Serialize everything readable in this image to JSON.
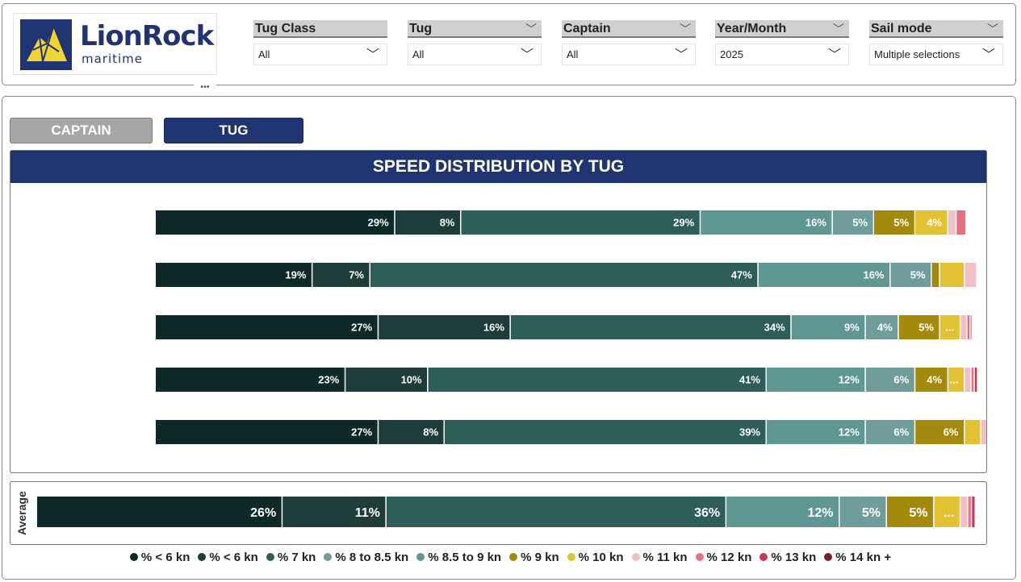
{
  "logo": {
    "name": "LionRock",
    "tagline": "maritime"
  },
  "filters": [
    {
      "label": "Tug Class",
      "value": "All",
      "header_chevron": false
    },
    {
      "label": "Tug",
      "value": "All",
      "header_chevron": true
    },
    {
      "label": "Captain",
      "value": "All",
      "header_chevron": true
    },
    {
      "label": "Year/Month",
      "value": "2025",
      "header_chevron": true
    },
    {
      "label": "Sail mode",
      "value": "Multiple selections",
      "header_chevron": true
    }
  ],
  "more_options": "•••",
  "buttons": {
    "captain": "CAPTAIN",
    "tug": "TUG"
  },
  "colors": {
    "brand": "#1f3470",
    "button_inactive": "#a6a6a6",
    "segments": [
      "#0d2a28",
      "#1e3c39",
      "#2e5e58",
      "#5f9792",
      "#6f9d9b",
      "#a48a0c",
      "#e2c232",
      "#f1bfc5",
      "#e47382",
      "#c73a4f",
      "#7a1f2e"
    ]
  },
  "chart_data": [
    {
      "type": "bar",
      "stacked": "horizontal",
      "title": "SPEED DISTRIBUTION BY TUG",
      "categories": [
        "",
        "",
        "",
        "",
        ""
      ],
      "series": [
        {
          "name": "% < 6 kn",
          "values": [
            29,
            19,
            27,
            23,
            27
          ]
        },
        {
          "name": "% < 6 kn",
          "values": [
            8,
            7,
            16,
            10,
            8
          ]
        },
        {
          "name": "% 7 kn",
          "values": [
            29,
            47,
            34,
            41,
            39
          ]
        },
        {
          "name": "% 8 to 8.5 kn",
          "values": [
            16,
            16,
            9,
            12,
            12
          ]
        },
        {
          "name": "% 8.5 to 9 kn",
          "values": [
            5,
            5,
            4,
            6,
            6
          ]
        },
        {
          "name": "% 9 kn",
          "values": [
            5,
            1,
            5,
            4,
            6
          ]
        },
        {
          "name": "% 10 kn",
          "values": [
            4,
            3,
            2.5,
            2,
            2
          ]
        },
        {
          "name": "% 11 kn",
          "values": [
            1,
            1.5,
            0.8,
            0.8,
            0.8
          ]
        },
        {
          "name": "% 12 kn",
          "values": [
            1.2,
            0,
            0.4,
            0.4,
            0.4
          ]
        },
        {
          "name": "% 13 kn",
          "values": [
            0,
            0,
            0.2,
            0.4,
            0.4
          ]
        },
        {
          "name": "% 14 kn +",
          "values": [
            0,
            0,
            0,
            0,
            0
          ]
        }
      ],
      "data_labels": [
        [
          "29%",
          "8%",
          "29%",
          "16%",
          "5%",
          "5%",
          "4%",
          "",
          "",
          "",
          ""
        ],
        [
          "19%",
          "7%",
          "47%",
          "16%",
          "5%",
          "",
          "",
          "",
          "",
          "",
          ""
        ],
        [
          "27%",
          "16%",
          "34%",
          "9%",
          "4%",
          "5%",
          "...",
          "",
          "",
          "",
          ""
        ],
        [
          "23%",
          "10%",
          "41%",
          "12%",
          "6%",
          "4%",
          "...",
          "",
          "",
          "",
          ""
        ],
        [
          "27%",
          "8%",
          "39%",
          "12%",
          "6%",
          "6%",
          "",
          "",
          "",
          "",
          ""
        ]
      ],
      "xlim": [
        0,
        100
      ],
      "grid": false,
      "legend": "bottom"
    },
    {
      "type": "bar",
      "stacked": "horizontal",
      "title": "",
      "categories": [
        "Average"
      ],
      "series": [
        {
          "name": "% < 6 kn",
          "values": [
            26
          ]
        },
        {
          "name": "% < 6 kn",
          "values": [
            11
          ]
        },
        {
          "name": "% 7 kn",
          "values": [
            36
          ]
        },
        {
          "name": "% 8 to 8.5 kn",
          "values": [
            12
          ]
        },
        {
          "name": "% 8.5 to 9 kn",
          "values": [
            5
          ]
        },
        {
          "name": "% 9 kn",
          "values": [
            5
          ]
        },
        {
          "name": "% 10 kn",
          "values": [
            2.8
          ]
        },
        {
          "name": "% 11 kn",
          "values": [
            0.8
          ]
        },
        {
          "name": "% 12 kn",
          "values": [
            0.4
          ]
        },
        {
          "name": "% 13 kn",
          "values": [
            0.4
          ]
        },
        {
          "name": "% 14 kn +",
          "values": [
            0
          ]
        }
      ],
      "data_labels": [
        [
          "26%",
          "11%",
          "36%",
          "12%",
          "5%",
          "5%",
          "...",
          "",
          "",
          "",
          ""
        ]
      ],
      "xlim": [
        0,
        100
      ],
      "grid": false,
      "legend": "bottom"
    }
  ],
  "legend": [
    {
      "label": "% < 6 kn",
      "color": "#0d2a28"
    },
    {
      "label": "% < 6 kn",
      "color": "#1e3c39"
    },
    {
      "label": "% 7 kn",
      "color": "#2e5e58"
    },
    {
      "label": "% 8 to 8.5 kn",
      "color": "#6f9d9b"
    },
    {
      "label": "% 8.5 to 9 kn",
      "color": "#5f9792"
    },
    {
      "label": "% 9 kn",
      "color": "#a48a0c"
    },
    {
      "label": "% 10 kn",
      "color": "#e2c232"
    },
    {
      "label": "% 11 kn",
      "color": "#f1bfc5"
    },
    {
      "label": "% 12 kn",
      "color": "#e47382"
    },
    {
      "label": "% 13 kn",
      "color": "#c73a4f"
    },
    {
      "label": "% 14 kn +",
      "color": "#7a1f2e"
    }
  ]
}
